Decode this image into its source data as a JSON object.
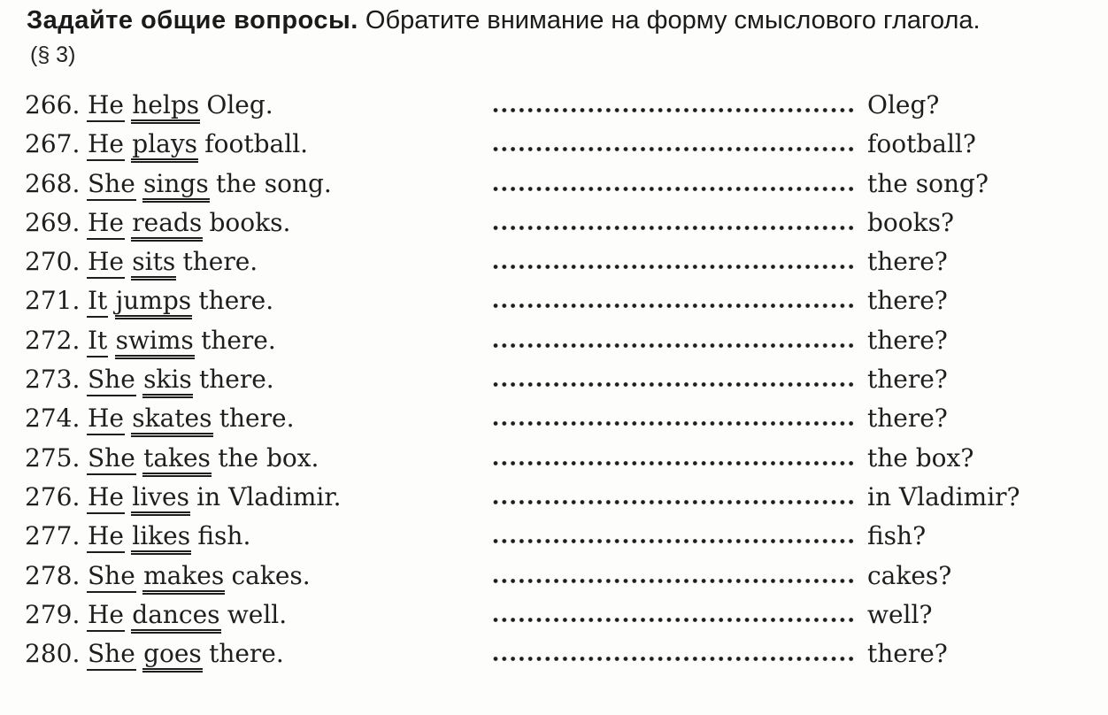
{
  "header": {
    "instruction_bold": "Задайте общие вопросы.",
    "instruction_regular": " Обратите внимание на форму смыслового глагола.",
    "paragraph_ref": "(§ 3)"
  },
  "exercise": {
    "items": [
      {
        "number": "266.",
        "subject": "He",
        "verb": "helps",
        "rest": "Oleg.",
        "question_ending": "Oleg?"
      },
      {
        "number": "267.",
        "subject": "He",
        "verb": "plays",
        "rest": "football.",
        "question_ending": "football?"
      },
      {
        "number": "268.",
        "subject": "She",
        "verb": "sings",
        "rest": "the song.",
        "question_ending": "the song?"
      },
      {
        "number": "269.",
        "subject": "He",
        "verb": "reads",
        "rest": "books.",
        "question_ending": "books?"
      },
      {
        "number": "270.",
        "subject": "He",
        "verb": "sits",
        "rest": "there.",
        "question_ending": "there?"
      },
      {
        "number": "271.",
        "subject": "It",
        "verb": "jumps",
        "rest": "there.",
        "question_ending": "there?"
      },
      {
        "number": "272.",
        "subject": "It",
        "verb": "swims",
        "rest": "there.",
        "question_ending": "there?"
      },
      {
        "number": "273.",
        "subject": "She",
        "verb": "skis",
        "rest": "there.",
        "question_ending": "there?"
      },
      {
        "number": "274.",
        "subject": "He",
        "verb": "skates",
        "rest": "there.",
        "question_ending": "there?"
      },
      {
        "number": "275.",
        "subject": "She",
        "verb": "takes",
        "rest": "the box.",
        "question_ending": "the box?"
      },
      {
        "number": "276.",
        "subject": "He",
        "verb": "lives",
        "rest": "in Vladimir.",
        "question_ending": "in Vladimir?"
      },
      {
        "number": "277.",
        "subject": "He",
        "verb": "likes",
        "rest": "fish.",
        "question_ending": "fish?"
      },
      {
        "number": "278.",
        "subject": "She",
        "verb": "makes",
        "rest": "cakes.",
        "question_ending": "cakes?"
      },
      {
        "number": "279.",
        "subject": "He",
        "verb": "dances",
        "rest": "well.",
        "question_ending": "well?"
      },
      {
        "number": "280.",
        "subject": "She",
        "verb": "goes",
        "rest": "there.",
        "question_ending": "there?"
      }
    ]
  }
}
